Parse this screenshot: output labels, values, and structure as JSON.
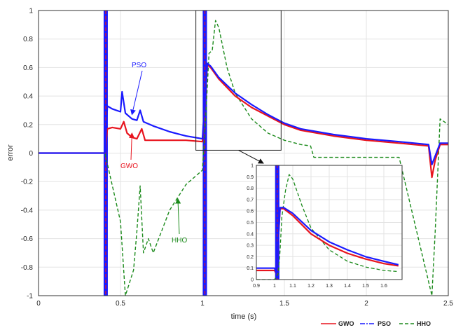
{
  "chart_data": {
    "type": "line",
    "title": "",
    "xlabel": "time (s)",
    "ylabel": "error",
    "xlim": [
      0,
      2.5
    ],
    "ylim": [
      -1,
      1
    ],
    "grid": true,
    "xticks": [
      0,
      0.5,
      1,
      1.5,
      2,
      2.5
    ],
    "xtick_labels": [
      "0",
      "0.5",
      "1",
      "1.5",
      "2",
      "2.5"
    ],
    "yticks": [
      -1,
      -0.8,
      -0.6,
      -0.4,
      -0.2,
      0,
      0.2,
      0.4,
      0.6,
      0.8,
      1
    ],
    "ytick_labels": [
      "-1",
      "-0.8",
      "-0.6",
      "-0.4",
      "-0.2",
      "0",
      "0.2",
      "0.4",
      "0.6",
      "0.8",
      "1"
    ],
    "legend": {
      "placement": "bottom-right",
      "entries": [
        {
          "name": "GWO",
          "color": "#e8141e",
          "style": "solid"
        },
        {
          "name": "PSO",
          "color": "#1a1aff",
          "style": "dashdot"
        },
        {
          "name": "HHO",
          "color": "#1b8a1b",
          "style": "dashed"
        }
      ]
    },
    "annotations": [
      {
        "text": "PSO",
        "color": "#1a1aff",
        "arrow_to": [
          0.57,
          0.27
        ]
      },
      {
        "text": "GWO",
        "color": "#e8141e",
        "arrow_to": [
          0.57,
          0.14
        ]
      },
      {
        "text": "HHO",
        "color": "#1b8a1b",
        "arrow_to": [
          0.85,
          -0.32
        ]
      }
    ],
    "series": [
      {
        "name": "GWO",
        "color": "#e8141e",
        "x": [
          0,
          0.3,
          0.405,
          0.42,
          0.45,
          0.5,
          0.52,
          0.54,
          0.57,
          0.6,
          0.63,
          0.65,
          0.7,
          0.8,
          0.9,
          1.0,
          1.03,
          1.05,
          1.1,
          1.2,
          1.3,
          1.4,
          1.5,
          1.6,
          1.8,
          2.0,
          2.2,
          2.38,
          2.4,
          2.42,
          2.45,
          2.5
        ],
        "y": [
          0,
          0,
          0,
          0.17,
          0.18,
          0.17,
          0.22,
          0.14,
          0.11,
          0.1,
          0.17,
          0.09,
          0.09,
          0.09,
          0.09,
          0.08,
          0.62,
          0.6,
          0.52,
          0.4,
          0.32,
          0.26,
          0.2,
          0.16,
          0.12,
          0.09,
          0.07,
          0.05,
          -0.17,
          -0.05,
          0.06,
          0.06
        ]
      },
      {
        "name": "PSO",
        "color": "#1a1aff",
        "x": [
          0,
          0.3,
          0.405,
          0.42,
          0.45,
          0.5,
          0.51,
          0.53,
          0.57,
          0.6,
          0.62,
          0.64,
          0.7,
          0.8,
          0.9,
          1.0,
          1.03,
          1.05,
          1.1,
          1.2,
          1.3,
          1.4,
          1.5,
          1.6,
          1.8,
          2.0,
          2.2,
          2.38,
          2.4,
          2.42,
          2.45,
          2.5
        ],
        "y": [
          0,
          0,
          0,
          0.33,
          0.31,
          0.29,
          0.43,
          0.28,
          0.24,
          0.23,
          0.3,
          0.22,
          0.19,
          0.15,
          0.12,
          0.1,
          0.63,
          0.61,
          0.53,
          0.42,
          0.34,
          0.27,
          0.21,
          0.17,
          0.13,
          0.1,
          0.08,
          0.06,
          -0.08,
          -0.02,
          0.07,
          0.07
        ]
      },
      {
        "name": "HHO",
        "color": "#1b8a1b",
        "x": [
          0,
          0.3,
          0.405,
          0.5,
          0.53,
          0.58,
          0.6,
          0.62,
          0.64,
          0.67,
          0.7,
          0.8,
          0.9,
          1.0,
          1.02,
          1.04,
          1.06,
          1.08,
          1.1,
          1.15,
          1.2,
          1.3,
          1.4,
          1.5,
          1.6,
          1.66,
          1.68,
          1.8,
          2.0,
          2.2,
          2.4,
          2.42,
          2.45,
          2.5
        ],
        "y": [
          0,
          0,
          0,
          -0.48,
          -1.0,
          -0.82,
          -0.55,
          -0.23,
          -0.7,
          -0.6,
          -0.7,
          -0.4,
          -0.22,
          -0.12,
          0.25,
          0.7,
          0.72,
          0.93,
          0.88,
          0.6,
          0.42,
          0.24,
          0.14,
          0.09,
          0.06,
          0.05,
          -0.03,
          -0.03,
          -0.03,
          -0.03,
          -1.0,
          -0.55,
          0.24,
          0.2
        ]
      }
    ],
    "vertical_bands": [
      0.41,
      1.015
    ],
    "zoom_box": {
      "x": [
        0.96,
        1.48
      ],
      "y": [
        0.02,
        1.0
      ]
    },
    "inset": {
      "xlim": [
        0.9,
        1.7
      ],
      "ylim": [
        0,
        1
      ],
      "xticks": [
        0.9,
        1,
        1.1,
        1.2,
        1.3,
        1.4,
        1.5,
        1.6
      ],
      "xtick_labels": [
        "0.9",
        "1",
        "1.1",
        "1.2",
        "1.3",
        "1.4",
        "1.5",
        "1.6"
      ],
      "yticks": [
        0,
        0.1,
        0.2,
        0.3,
        0.4,
        0.5,
        0.6,
        0.7,
        0.8,
        0.9,
        1
      ],
      "ytick_labels": [
        "0",
        "0.1",
        "0.2",
        "0.3",
        "0.4",
        "0.5",
        "0.6",
        "0.7",
        "0.8",
        "0.9",
        "1"
      ],
      "vertical_band": 1.015,
      "series": [
        {
          "name": "GWO",
          "color": "#e8141e",
          "x": [
            0.9,
            1.0,
            1.01,
            1.03,
            1.05,
            1.1,
            1.2,
            1.3,
            1.4,
            1.5,
            1.6,
            1.68
          ],
          "y": [
            0.08,
            0.08,
            0.05,
            0.62,
            0.62,
            0.56,
            0.4,
            0.3,
            0.23,
            0.18,
            0.14,
            0.12
          ]
        },
        {
          "name": "PSO",
          "color": "#1a1aff",
          "x": [
            0.9,
            1.0,
            1.01,
            1.03,
            1.05,
            1.1,
            1.2,
            1.3,
            1.4,
            1.5,
            1.6,
            1.68
          ],
          "y": [
            0.1,
            0.1,
            0.05,
            0.63,
            0.63,
            0.58,
            0.43,
            0.33,
            0.26,
            0.2,
            0.16,
            0.13
          ]
        },
        {
          "name": "HHO",
          "color": "#1b8a1b",
          "x": [
            0.9,
            1.0,
            1.02,
            1.03,
            1.04,
            1.06,
            1.08,
            1.1,
            1.15,
            1.2,
            1.3,
            1.4,
            1.5,
            1.6,
            1.68
          ],
          "y": [
            0.0,
            0.0,
            0.05,
            0.25,
            0.55,
            0.78,
            0.92,
            0.88,
            0.65,
            0.45,
            0.26,
            0.16,
            0.11,
            0.08,
            0.07
          ]
        }
      ]
    }
  }
}
